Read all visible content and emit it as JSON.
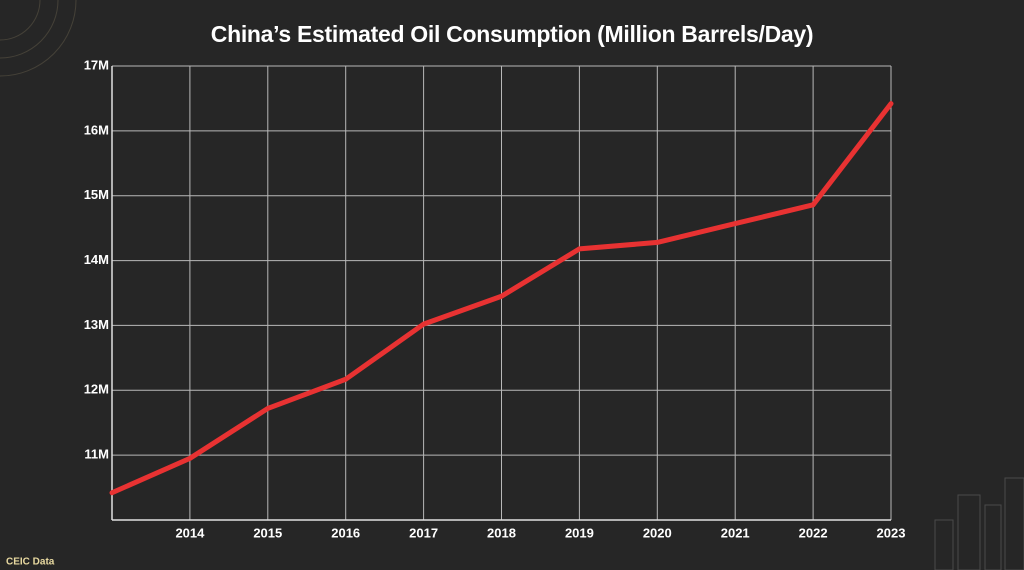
{
  "chart_data": {
    "type": "line",
    "title": "China’s Estimated Oil Consumption (Million Barrels/Day)",
    "categories": [
      null,
      "2014",
      "2015",
      "2016",
      "2017",
      "2018",
      "2019",
      "2020",
      "2021",
      "2022",
      "2023"
    ],
    "values": [
      10.42,
      10.95,
      11.72,
      12.17,
      13.02,
      13.45,
      14.18,
      14.28,
      14.57,
      14.86,
      16.42
    ],
    "color": "#e83232",
    "ylim": [
      10,
      17
    ],
    "yticks": [
      {
        "value": 11,
        "label": "11M"
      },
      {
        "value": 12,
        "label": "12M"
      },
      {
        "value": 13,
        "label": "13M"
      },
      {
        "value": 14,
        "label": "14M"
      },
      {
        "value": 15,
        "label": "15M"
      },
      {
        "value": 16,
        "label": "16M"
      },
      {
        "value": 17,
        "label": "17M"
      }
    ],
    "grid": true,
    "source": "CEIC Data"
  }
}
